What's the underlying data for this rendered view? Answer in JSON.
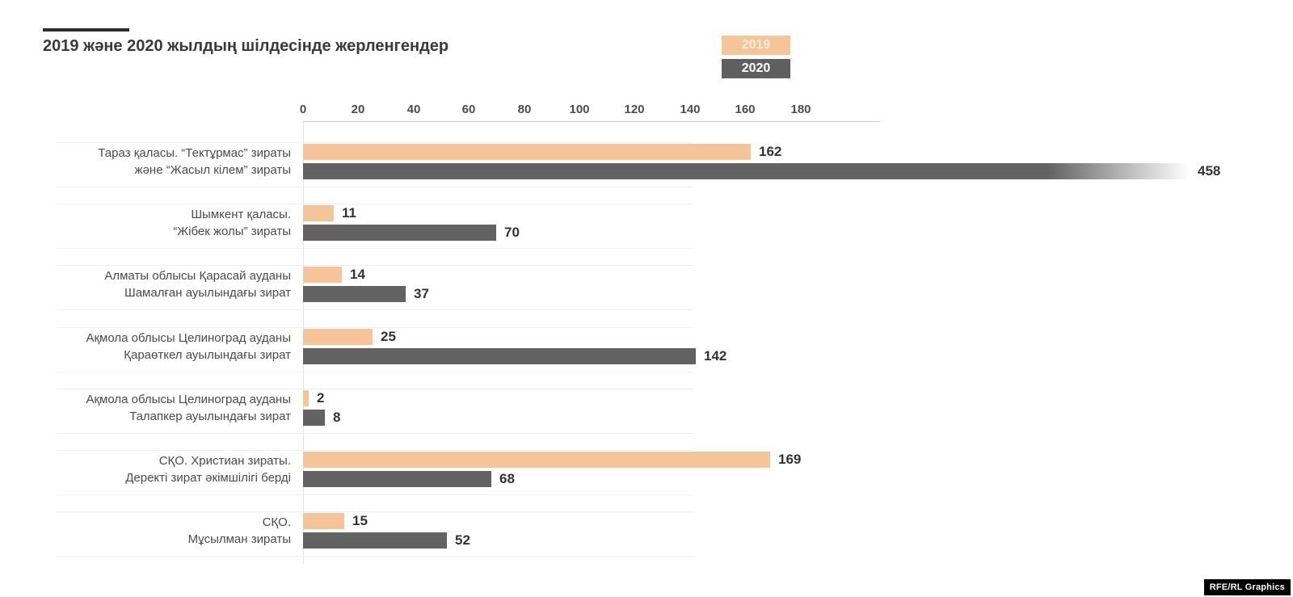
{
  "header": {
    "title": "2019 және 2020 жылдың шілдесінде жерленгендер"
  },
  "legend": {
    "items": [
      {
        "label": "2019",
        "color": "#f5c499"
      },
      {
        "label": "2020",
        "color": "#626262"
      }
    ]
  },
  "footer": {
    "credit": "RFE/RL Graphics"
  },
  "chart_data": {
    "type": "bar",
    "orientation": "horizontal",
    "title": "2019 және 2020 жылдың шілдесінде жерленгендер",
    "categories": [
      [
        "Тараз қаласы. “Тектұрмас” зираты",
        "және “Жасыл кілем” зираты"
      ],
      [
        "Шымкент қаласы.",
        "“Жібек жолы” зираты"
      ],
      [
        "Алматы облысы Қарасай ауданы",
        "Шамалған ауылындағы зират"
      ],
      [
        "Ақмола облысы Целиноград ауданы",
        "Қараөткел ауылындағы зират"
      ],
      [
        "Ақмола облысы Целиноград ауданы",
        "Талапкер ауылындағы зират"
      ],
      [
        "СҚО. Христиан зираты.",
        "Деректі зират әкімшілігі берді"
      ],
      [
        "СҚО.",
        "Мұсылман зираты"
      ]
    ],
    "series": [
      {
        "name": "2019",
        "color": "#f5c499",
        "values": [
          162,
          11,
          14,
          25,
          2,
          169,
          15
        ]
      },
      {
        "name": "2020",
        "color": "#626262",
        "values": [
          458,
          70,
          37,
          142,
          8,
          68,
          52
        ]
      }
    ],
    "xticks": [
      0,
      20,
      40,
      60,
      80,
      100,
      120,
      140,
      160,
      180
    ],
    "xlim": [
      0,
      210
    ],
    "grid": false,
    "legend_position": "top-right"
  }
}
